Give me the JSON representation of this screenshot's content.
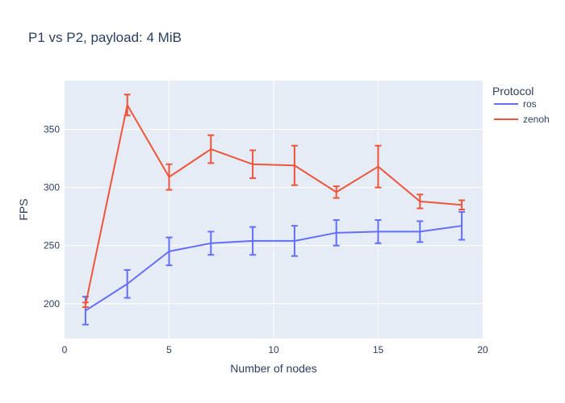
{
  "chart_data": {
    "type": "line",
    "title": "P1 vs P2, payload: 4 MiB",
    "xlabel": "Number of nodes",
    "ylabel": "FPS",
    "xlim": [
      0,
      20
    ],
    "ylim": [
      170,
      392
    ],
    "x_ticks": [
      0,
      5,
      10,
      15,
      20
    ],
    "y_ticks": [
      200,
      250,
      300,
      350
    ],
    "grid": true,
    "legend_title": "Protocol",
    "legend_position": "top-right",
    "series": [
      {
        "name": "ros",
        "color": "#636efa",
        "x": [
          1,
          3,
          5,
          7,
          9,
          11,
          13,
          15,
          17,
          19
        ],
        "y": [
          194,
          217,
          245,
          252,
          254,
          254,
          261,
          262,
          262,
          267
        ],
        "error": [
          12,
          12,
          12,
          10,
          12,
          13,
          11,
          10,
          9,
          12
        ]
      },
      {
        "name": "zenoh",
        "color": "#ef553b",
        "x": [
          1,
          3,
          5,
          7,
          9,
          11,
          13,
          15,
          17,
          19
        ],
        "y": [
          199,
          371,
          309,
          333,
          320,
          319,
          296,
          318,
          288,
          285
        ],
        "error": [
          2,
          9,
          11,
          12,
          12,
          17,
          5,
          18,
          6,
          4
        ]
      }
    ]
  }
}
